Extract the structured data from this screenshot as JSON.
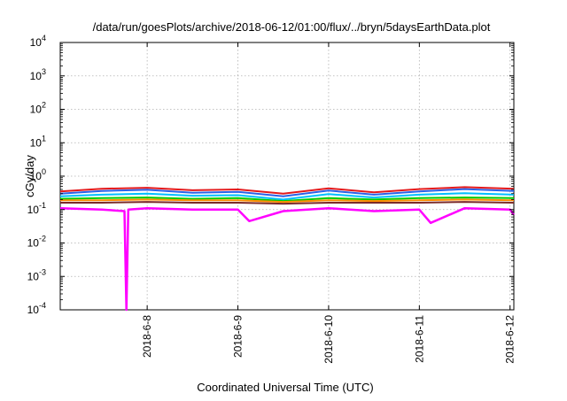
{
  "chart_data": {
    "type": "line",
    "title": "/data/run/goesPlots/archive/2018-06-12/01:00/flux/../bryn/5daysEarthData.plot",
    "xlabel": "Coordinated Universal Time (UTC)",
    "ylabel": "cGy/day",
    "yscale": "log",
    "ylim": [
      0.0001,
      10000
    ],
    "xlim": [
      "2018-06-07T01:00",
      "2018-06-12T01:00"
    ],
    "grid": true,
    "legend": "none",
    "x_ticks": [
      "2018-6-8",
      "2018-6-9",
      "2018-6-10",
      "2018-6-11",
      "2018-6-12"
    ],
    "y_ticks": [
      {
        "base": "10",
        "exp": "-4"
      },
      {
        "base": "10",
        "exp": "-3"
      },
      {
        "base": "10",
        "exp": "-2"
      },
      {
        "base": "10",
        "exp": "-1"
      },
      {
        "base": "10",
        "exp": "0"
      },
      {
        "base": "10",
        "exp": "1"
      },
      {
        "base": "10",
        "exp": "2"
      },
      {
        "base": "10",
        "exp": "3"
      },
      {
        "base": "10",
        "exp": "4"
      }
    ],
    "series": [
      {
        "color": "#e41a1c",
        "values": [
          {
            "x": "2018-06-07T01:00",
            "y": 0.35
          },
          {
            "x": "2018-06-07T12:00",
            "y": 0.42
          },
          {
            "x": "2018-06-08T00:00",
            "y": 0.45
          },
          {
            "x": "2018-06-08T12:00",
            "y": 0.38
          },
          {
            "x": "2018-06-09T00:00",
            "y": 0.4
          },
          {
            "x": "2018-06-09T12:00",
            "y": 0.3
          },
          {
            "x": "2018-06-10T00:00",
            "y": 0.43
          },
          {
            "x": "2018-06-10T12:00",
            "y": 0.33
          },
          {
            "x": "2018-06-11T00:00",
            "y": 0.41
          },
          {
            "x": "2018-06-11T12:00",
            "y": 0.47
          },
          {
            "x": "2018-06-12T01:00",
            "y": 0.42
          }
        ]
      },
      {
        "color": "#2a62e8",
        "values": [
          {
            "x": "2018-06-07T01:00",
            "y": 0.3
          },
          {
            "x": "2018-06-07T12:00",
            "y": 0.36
          },
          {
            "x": "2018-06-08T00:00",
            "y": 0.39
          },
          {
            "x": "2018-06-08T12:00",
            "y": 0.32
          },
          {
            "x": "2018-06-09T00:00",
            "y": 0.34
          },
          {
            "x": "2018-06-09T12:00",
            "y": 0.25
          },
          {
            "x": "2018-06-10T00:00",
            "y": 0.37
          },
          {
            "x": "2018-06-10T12:00",
            "y": 0.28
          },
          {
            "x": "2018-06-11T00:00",
            "y": 0.35
          },
          {
            "x": "2018-06-11T12:00",
            "y": 0.41
          },
          {
            "x": "2018-06-12T01:00",
            "y": 0.36
          }
        ]
      },
      {
        "color": "#00bfff",
        "values": [
          {
            "x": "2018-06-07T01:00",
            "y": 0.25
          },
          {
            "x": "2018-06-07T12:00",
            "y": 0.28
          },
          {
            "x": "2018-06-08T00:00",
            "y": 0.3
          },
          {
            "x": "2018-06-08T12:00",
            "y": 0.26
          },
          {
            "x": "2018-06-09T00:00",
            "y": 0.27
          },
          {
            "x": "2018-06-09T12:00",
            "y": 0.2
          },
          {
            "x": "2018-06-10T00:00",
            "y": 0.29
          },
          {
            "x": "2018-06-10T12:00",
            "y": 0.23
          },
          {
            "x": "2018-06-11T00:00",
            "y": 0.28
          },
          {
            "x": "2018-06-11T12:00",
            "y": 0.31
          },
          {
            "x": "2018-06-12T01:00",
            "y": 0.28
          }
        ]
      },
      {
        "color": "#00cc00",
        "values": [
          {
            "x": "2018-06-07T01:00",
            "y": 0.21
          },
          {
            "x": "2018-06-07T12:00",
            "y": 0.22
          },
          {
            "x": "2018-06-08T00:00",
            "y": 0.23
          },
          {
            "x": "2018-06-08T12:00",
            "y": 0.21
          },
          {
            "x": "2018-06-09T00:00",
            "y": 0.22
          },
          {
            "x": "2018-06-09T12:00",
            "y": 0.18
          },
          {
            "x": "2018-06-10T00:00",
            "y": 0.22
          },
          {
            "x": "2018-06-10T12:00",
            "y": 0.2
          },
          {
            "x": "2018-06-11T00:00",
            "y": 0.22
          },
          {
            "x": "2018-06-11T12:00",
            "y": 0.23
          },
          {
            "x": "2018-06-12T01:00",
            "y": 0.22
          }
        ]
      },
      {
        "color": "#ff8c00",
        "values": [
          {
            "x": "2018-06-07T01:00",
            "y": 0.19
          },
          {
            "x": "2018-06-07T12:00",
            "y": 0.19
          },
          {
            "x": "2018-06-08T00:00",
            "y": 0.2
          },
          {
            "x": "2018-06-08T12:00",
            "y": 0.19
          },
          {
            "x": "2018-06-09T00:00",
            "y": 0.19
          },
          {
            "x": "2018-06-09T12:00",
            "y": 0.17
          },
          {
            "x": "2018-06-10T00:00",
            "y": 0.19
          },
          {
            "x": "2018-06-10T12:00",
            "y": 0.18
          },
          {
            "x": "2018-06-11T00:00",
            "y": 0.19
          },
          {
            "x": "2018-06-11T12:00",
            "y": 0.2
          },
          {
            "x": "2018-06-12T01:00",
            "y": 0.19
          }
        ]
      },
      {
        "color": "#7b2a2a",
        "values": [
          {
            "x": "2018-06-07T01:00",
            "y": 0.16
          },
          {
            "x": "2018-06-07T12:00",
            "y": 0.16
          },
          {
            "x": "2018-06-08T00:00",
            "y": 0.17
          },
          {
            "x": "2018-06-08T12:00",
            "y": 0.16
          },
          {
            "x": "2018-06-09T00:00",
            "y": 0.16
          },
          {
            "x": "2018-06-09T12:00",
            "y": 0.15
          },
          {
            "x": "2018-06-10T00:00",
            "y": 0.16
          },
          {
            "x": "2018-06-10T12:00",
            "y": 0.16
          },
          {
            "x": "2018-06-11T00:00",
            "y": 0.16
          },
          {
            "x": "2018-06-11T12:00",
            "y": 0.17
          },
          {
            "x": "2018-06-12T01:00",
            "y": 0.16
          }
        ]
      },
      {
        "color": "#ff00ff",
        "values": [
          {
            "x": "2018-06-07T01:00",
            "y": 0.11
          },
          {
            "x": "2018-06-07T12:00",
            "y": 0.1
          },
          {
            "x": "2018-06-07T18:00",
            "y": 0.09
          },
          {
            "x": "2018-06-07T18:30",
            "y": 0.0001
          },
          {
            "x": "2018-06-07T19:00",
            "y": 0.1
          },
          {
            "x": "2018-06-08T00:00",
            "y": 0.11
          },
          {
            "x": "2018-06-08T12:00",
            "y": 0.1
          },
          {
            "x": "2018-06-09T00:00",
            "y": 0.1
          },
          {
            "x": "2018-06-09T03:00",
            "y": 0.045
          },
          {
            "x": "2018-06-09T12:00",
            "y": 0.09
          },
          {
            "x": "2018-06-10T00:00",
            "y": 0.11
          },
          {
            "x": "2018-06-10T12:00",
            "y": 0.09
          },
          {
            "x": "2018-06-11T00:00",
            "y": 0.1
          },
          {
            "x": "2018-06-11T03:00",
            "y": 0.04
          },
          {
            "x": "2018-06-11T12:00",
            "y": 0.11
          },
          {
            "x": "2018-06-12T00:00",
            "y": 0.1
          },
          {
            "x": "2018-06-12T01:00",
            "y": 0.07
          }
        ]
      }
    ]
  }
}
